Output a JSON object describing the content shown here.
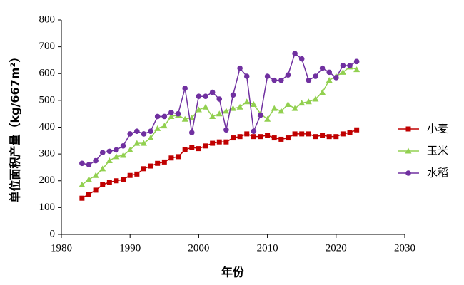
{
  "chart_data": {
    "type": "line",
    "x_label": "年份",
    "y_label": "单位面积产量（kg/667m²）",
    "x": [
      1983,
      1984,
      1985,
      1986,
      1987,
      1988,
      1989,
      1990,
      1991,
      1992,
      1993,
      1994,
      1995,
      1996,
      1997,
      1998,
      1999,
      2000,
      2001,
      2002,
      2003,
      2004,
      2005,
      2006,
      2007,
      2008,
      2009,
      2010,
      2011,
      2012,
      2013,
      2014,
      2015,
      2016,
      2017,
      2018,
      2019,
      2020,
      2021,
      2022,
      2023
    ],
    "series": [
      {
        "name": "小麦",
        "color": "#c00000",
        "marker": "square",
        "values": [
          135,
          150,
          165,
          185,
          195,
          200,
          205,
          220,
          225,
          245,
          255,
          265,
          270,
          285,
          290,
          315,
          325,
          320,
          330,
          340,
          345,
          345,
          360,
          365,
          375,
          365,
          365,
          370,
          360,
          355,
          360,
          375,
          375,
          375,
          365,
          370,
          365,
          365,
          375,
          380,
          390
        ]
      },
      {
        "name": "玉米",
        "color": "#92d050",
        "marker": "triangle",
        "values": [
          185,
          205,
          220,
          245,
          275,
          290,
          295,
          315,
          340,
          340,
          360,
          395,
          405,
          440,
          445,
          430,
          435,
          465,
          475,
          440,
          450,
          460,
          470,
          475,
          495,
          485,
          450,
          430,
          470,
          460,
          485,
          470,
          490,
          495,
          505,
          530,
          575,
          590,
          605,
          625,
          615
        ]
      },
      {
        "name": "水稻",
        "color": "#7030a0",
        "marker": "circle",
        "values": [
          265,
          260,
          275,
          305,
          310,
          315,
          330,
          375,
          385,
          375,
          385,
          440,
          440,
          455,
          450,
          545,
          380,
          515,
          515,
          530,
          505,
          390,
          520,
          620,
          590,
          385,
          445,
          590,
          575,
          575,
          595,
          675,
          655,
          575,
          590,
          620,
          605,
          585,
          630,
          630,
          645
        ]
      }
    ],
    "xlim": [
      1980,
      2030
    ],
    "xticks": [
      1980,
      1990,
      2000,
      2010,
      2020,
      2030
    ],
    "ylim": [
      0,
      800
    ],
    "yticks": [
      0,
      100,
      200,
      300,
      400,
      500,
      600,
      700,
      800
    ],
    "legend": "right"
  }
}
